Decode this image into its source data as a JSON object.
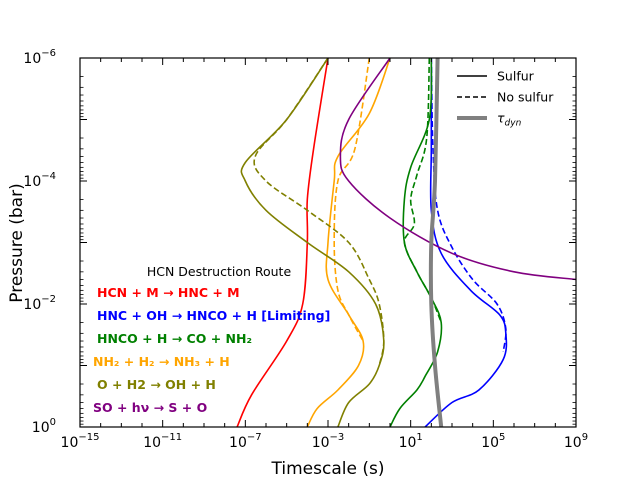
{
  "chart_data": {
    "type": "line",
    "xlabel": "Timescale (s)",
    "ylabel": "Pressure (bar)",
    "xscale": "log",
    "yscale": "log",
    "xlim": [
      1e-15,
      1000000000.0
    ],
    "ylim": [
      1,
      1e-06
    ],
    "x_ticks": [
      {
        "value": 1e-15,
        "base": "10",
        "exp": "−15"
      },
      {
        "value": 1e-11,
        "base": "10",
        "exp": "−11"
      },
      {
        "value": 1e-07,
        "base": "10",
        "exp": "−7"
      },
      {
        "value": 0.001,
        "base": "10",
        "exp": "−3"
      },
      {
        "value": 10,
        "base": "10",
        "exp": "1"
      },
      {
        "value": 100000.0,
        "base": "10",
        "exp": "5"
      },
      {
        "value": 1000000000.0,
        "base": "10",
        "exp": "9"
      }
    ],
    "y_ticks": [
      {
        "value": 1e-06,
        "base": "10",
        "exp": "−6"
      },
      {
        "value": 0.0001,
        "base": "10",
        "exp": "−4"
      },
      {
        "value": 0.01,
        "base": "10",
        "exp": "−2"
      },
      {
        "value": 1,
        "base": "10",
        "exp": "0"
      }
    ],
    "legend": {
      "position": "top-right",
      "entries": [
        {
          "label": "Sulfur",
          "style": "solid",
          "color": "#000000"
        },
        {
          "label": "No sulfur",
          "style": "dashed",
          "color": "#000000"
        },
        {
          "label": "τ",
          "sub": "dyn",
          "style": "thick",
          "color": "#808080"
        }
      ]
    },
    "annotation_title": "HCN Destruction Route",
    "annotations": [
      {
        "color": "#ff0000",
        "label": "HCN + M → HNC + M"
      },
      {
        "color": "#0000ff",
        "label": "HNC + OH → HNCO + H [Limiting]"
      },
      {
        "color": "#008000",
        "label": "HNCO + H → CO + NH₂"
      },
      {
        "color": "#ffa500",
        "label": "NH₂ + H₂ → NH₃ + H"
      },
      {
        "color": "#808000",
        "label": "O + H2 → OH + H"
      },
      {
        "color": "#800080",
        "label": "SO + hν → S + O"
      }
    ],
    "series": [
      {
        "name": "HCN+M (sulfur)",
        "color": "#ff0000",
        "style": "solid",
        "points": [
          [
            0.001,
            1e-06
          ],
          [
            0.0002,
            3e-05
          ],
          [
            0.0001,
            0.0002
          ],
          [
            0.0001,
            0.001
          ],
          [
            6e-05,
            0.01
          ],
          [
            1e-05,
            0.04
          ],
          [
            2e-07,
            0.3
          ],
          [
            4e-08,
            1
          ]
        ]
      },
      {
        "name": "HNC+OH (sulfur)",
        "color": "#0000ff",
        "style": "solid",
        "points": [
          [
            100.0,
            1e-06
          ],
          [
            100.0,
            3e-05
          ],
          [
            100.0,
            0.0003
          ],
          [
            300.0,
            0.0015
          ],
          [
            8000.0,
            0.006
          ],
          [
            200000.0,
            0.015
          ],
          [
            400000.0,
            0.03
          ],
          [
            300000.0,
            0.08
          ],
          [
            20000.0,
            0.25
          ],
          [
            1000.0,
            0.4
          ],
          [
            50.0,
            1
          ]
        ]
      },
      {
        "name": "HNC+OH (no sulfur)",
        "color": "#0000ff",
        "style": "dashed",
        "points": [
          [
            100.0,
            1e-06
          ],
          [
            120.0,
            3e-05
          ],
          [
            200.0,
            0.0003
          ],
          [
            1000.0,
            0.0012
          ],
          [
            10000.0,
            0.004
          ],
          [
            150000.0,
            0.01
          ],
          [
            400000.0,
            0.025
          ],
          [
            300000.0,
            0.06
          ]
        ]
      },
      {
        "name": "HNCO+H (sulfur)",
        "color": "#008000",
        "style": "solid",
        "points": [
          [
            100.0,
            1e-06
          ],
          [
            80.0,
            1e-05
          ],
          [
            10.0,
            6e-05
          ],
          [
            5.0,
            0.0002
          ],
          [
            5,
            0.001
          ],
          [
            20.0,
            0.003
          ],
          [
            100.0,
            0.008
          ],
          [
            300.0,
            0.02
          ],
          [
            200.0,
            0.06
          ],
          [
            50.0,
            0.15
          ],
          [
            20.0,
            0.25
          ],
          [
            3,
            0.5
          ],
          [
            1,
            1
          ]
        ]
      },
      {
        "name": "HNCO+H (no sulfur)",
        "color": "#008000",
        "style": "dashed",
        "points": [
          [
            80.0,
            1e-06
          ],
          [
            60.0,
            2e-05
          ],
          [
            20.0,
            8e-05
          ],
          [
            10.0,
            0.0002
          ],
          [
            15.0,
            0.0005
          ],
          [
            5,
            0.001
          ],
          [
            20.0,
            0.003
          ],
          [
            100.0,
            0.008
          ],
          [
            300.0,
            0.02
          ]
        ]
      },
      {
        "name": "NH2+H2 (sulfur)",
        "color": "#ffa500",
        "style": "solid",
        "points": [
          [
            1.0,
            1e-06
          ],
          [
            0.1,
            8e-06
          ],
          [
            0.003,
            4e-05
          ],
          [
            0.002,
            0.0001
          ],
          [
            0.001,
            0.001
          ],
          [
            0.001,
            0.004
          ],
          [
            0.01,
            0.015
          ],
          [
            0.05,
            0.04
          ],
          [
            0.03,
            0.1
          ],
          [
            0.003,
            0.25
          ],
          [
            0.0003,
            0.5
          ],
          [
            0.0001,
            1
          ]
        ]
      },
      {
        "name": "NH2+H2 (no sulfur)",
        "color": "#ffa500",
        "style": "dashed",
        "points": [
          [
            0.1,
            1e-06
          ],
          [
            0.02,
            3e-05
          ],
          [
            0.003,
            0.0001
          ],
          [
            0.002,
            0.001
          ],
          [
            0.003,
            0.006
          ],
          [
            0.01,
            0.015
          ],
          [
            0.05,
            0.04
          ]
        ]
      },
      {
        "name": "O+H2 (sulfur)",
        "color": "#808000",
        "style": "solid",
        "points": [
          [
            0.001,
            1e-06
          ],
          [
            1e-05,
            1e-05
          ],
          [
            1e-07,
            5e-05
          ],
          [
            1e-07,
            0.0001
          ],
          [
            1e-06,
            0.0003
          ],
          [
            0.0001,
            0.001
          ],
          [
            0.01,
            0.003
          ],
          [
            0.2,
            0.01
          ],
          [
            0.5,
            0.04
          ],
          [
            0.3,
            0.1
          ],
          [
            0.1,
            0.2
          ],
          [
            0.01,
            0.4
          ],
          [
            0.003,
            1
          ]
        ]
      },
      {
        "name": "O+H2 (no sulfur)",
        "color": "#808000",
        "style": "dashed",
        "points": [
          [
            0.001,
            1e-06
          ],
          [
            1e-05,
            1e-05
          ],
          [
            3e-07,
            4e-05
          ],
          [
            1e-06,
            0.0001
          ],
          [
            0.0001,
            0.0003
          ],
          [
            0.01,
            0.001
          ],
          [
            0.1,
            0.004
          ],
          [
            0.3,
            0.01
          ],
          [
            0.5,
            0.04
          ],
          [
            0.3,
            0.1
          ]
        ]
      },
      {
        "name": "SO+hv (sulfur)",
        "color": "#800080",
        "style": "solid",
        "points": [
          [
            1.0,
            1e-06
          ],
          [
            0.01,
            1e-05
          ],
          [
            0.004,
            4e-05
          ],
          [
            0.01,
            0.0001
          ],
          [
            1.0,
            0.0004
          ],
          [
            1000.0,
            0.0015
          ],
          [
            1000000.0,
            0.003
          ],
          [
            1000000000.0,
            0.004
          ]
        ]
      },
      {
        "name": "tau_dyn",
        "color": "#808080",
        "style": "thick",
        "points": [
          [
            200.0,
            1e-06
          ],
          [
            150.0,
            0.0001
          ],
          [
            100.0,
            0.001
          ],
          [
            100.0,
            0.01
          ],
          [
            150.0,
            0.1
          ],
          [
            300.0,
            1
          ]
        ]
      }
    ]
  }
}
